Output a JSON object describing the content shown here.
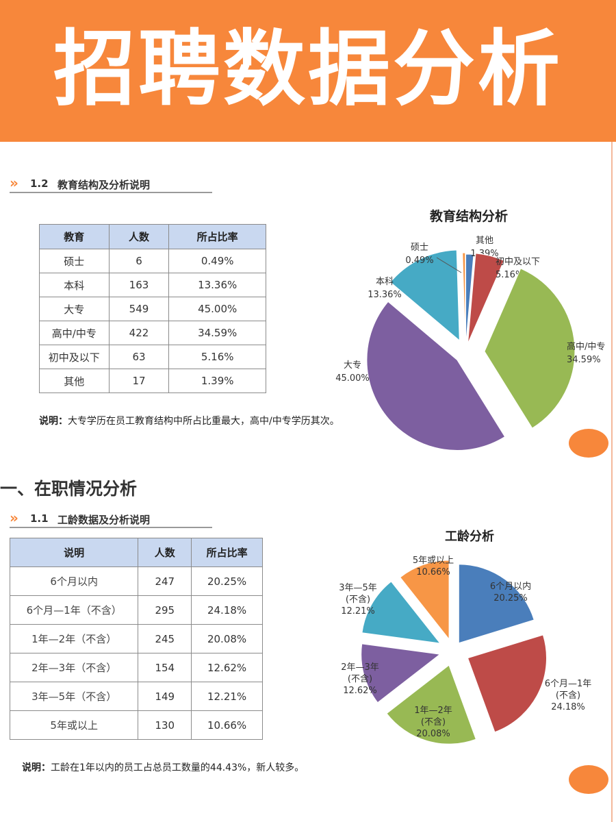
{
  "banner": {
    "title": "招聘数据分析"
  },
  "education": {
    "heading_num": "1.2",
    "heading_text": "教育结构及分析说明",
    "table": {
      "headers": [
        "教育",
        "人数",
        "所占比率"
      ],
      "rows": [
        [
          "硕士",
          "6",
          "0.49%"
        ],
        [
          "本科",
          "163",
          "13.36%"
        ],
        [
          "大专",
          "549",
          "45.00%"
        ],
        [
          "高中/中专",
          "422",
          "34.59%"
        ],
        [
          "初中及以下",
          "63",
          "5.16%"
        ],
        [
          "其他",
          "17",
          "1.39%"
        ]
      ]
    },
    "note_label": "说明：",
    "note_text": "大专学历在员工教育结构中所占比重最大，高中/中专学历其次。"
  },
  "section_title": "一、在职情况分析",
  "tenure": {
    "heading_num": "1.1",
    "heading_text": "工龄数据及分析说明",
    "table": {
      "headers": [
        "说明",
        "人数",
        "所占比率"
      ],
      "rows": [
        [
          "6个月以内",
          "247",
          "20.25%"
        ],
        [
          "6个月—1年（不含）",
          "295",
          "24.18%"
        ],
        [
          "1年—2年（不含）",
          "245",
          "20.08%"
        ],
        [
          "2年—3年（不含）",
          "154",
          "12.62%"
        ],
        [
          "3年—5年（不含）",
          "149",
          "12.21%"
        ],
        [
          "5年或以上",
          "130",
          "10.66%"
        ]
      ]
    },
    "note_label": "说明：",
    "note_text": "工龄在1年以内的员工占总员工数量的44.43%，新人较多。"
  },
  "chart_data": [
    {
      "type": "pie",
      "title": "教育结构分析",
      "categories": [
        "其他",
        "初中及以下",
        "高中/中专",
        "大专",
        "本科",
        "硕士"
      ],
      "values": [
        1.39,
        5.16,
        34.59,
        45.0,
        13.36,
        0.49
      ],
      "labels": [
        "1.39%",
        "5.16%",
        "34.59%",
        "45.00%",
        "13.36%",
        "0.49%"
      ],
      "colors": [
        "#4a7ebb",
        "#be4b48",
        "#98b954",
        "#7d5fa0",
        "#46aac5",
        "#f79646"
      ]
    },
    {
      "type": "pie",
      "title": "工龄分析",
      "categories": [
        "6个月以内",
        "6个月—1年",
        "1年—2年",
        "2年—3年",
        "3年—5年",
        "5年或以上"
      ],
      "label_lines": [
        [
          "6个月以内"
        ],
        [
          "6个月—1年",
          "(不含)"
        ],
        [
          "1年—2年",
          "(不含)"
        ],
        [
          "2年—3年",
          "(不含)"
        ],
        [
          "3年—5年",
          "(不含)"
        ],
        [
          "5年或以上"
        ]
      ],
      "values": [
        20.25,
        24.18,
        20.08,
        12.62,
        12.21,
        10.66
      ],
      "labels": [
        "20.25%",
        "24.18%",
        "20.08%",
        "12.62%",
        "12.21%",
        "10.66%"
      ],
      "colors": [
        "#4a7ebb",
        "#be4b48",
        "#98b954",
        "#7d5fa0",
        "#46aac5",
        "#f79646"
      ]
    }
  ]
}
